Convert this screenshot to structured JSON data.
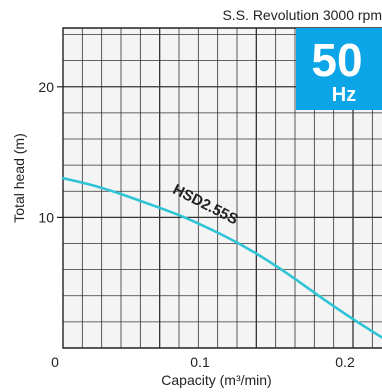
{
  "chart_data": {
    "type": "line",
    "title": "S.S. Revolution 3000 rpm",
    "badge": {
      "big": "50",
      "small": "Hz",
      "color": "#0ca6e8"
    },
    "xlabel": "Capacity (m³/min)",
    "ylabel": "Total head (m)",
    "xlim": [
      0,
      0.22
    ],
    "ylim": [
      0,
      24.5
    ],
    "x_ticks": [
      {
        "value": 0,
        "label": "0"
      },
      {
        "value": 0.1,
        "label": "0.1"
      },
      {
        "value": 0.2,
        "label": "0.2"
      }
    ],
    "y_ticks": [
      {
        "value": 10,
        "label": "10"
      },
      {
        "value": 20,
        "label": "20"
      }
    ],
    "grid": true,
    "series": [
      {
        "name": "HSD2.55S",
        "color": "#2ec4d6",
        "points": [
          [
            0.0,
            13.0
          ],
          [
            0.02,
            12.5
          ],
          [
            0.04,
            11.8
          ],
          [
            0.06,
            11.0
          ],
          [
            0.08,
            10.2
          ],
          [
            0.1,
            9.2
          ],
          [
            0.12,
            8.1
          ],
          [
            0.14,
            6.8
          ],
          [
            0.16,
            5.3
          ],
          [
            0.18,
            3.7
          ],
          [
            0.2,
            2.2
          ],
          [
            0.22,
            0.8
          ]
        ]
      }
    ]
  }
}
